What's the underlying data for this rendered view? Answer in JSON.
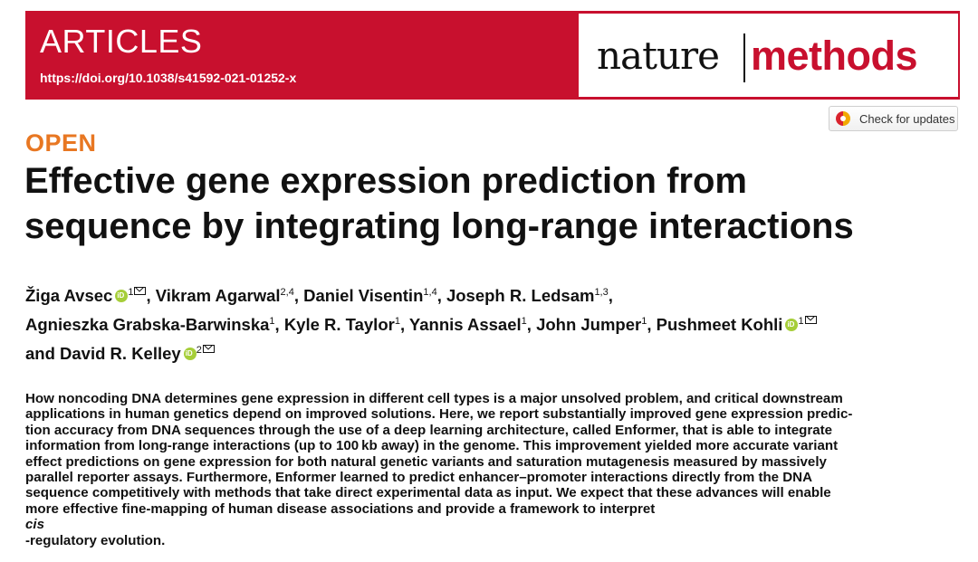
{
  "header": {
    "section": "ARTICLES",
    "doi": "https://doi.org/10.1038/s41592-021-01252-x"
  },
  "logo": {
    "part1": "nature",
    "part2": "methods",
    "colors": {
      "accent": "#c8102e",
      "dark": "#111111"
    }
  },
  "updates_button": {
    "label": "Check for updates",
    "icon": "check-updates-icon"
  },
  "access": {
    "label": "OPEN",
    "color": "#e87722"
  },
  "title": {
    "lines": [
      "Effective gene expression prediction from",
      "sequence by integrating long-range interactions"
    ]
  },
  "authors": [
    {
      "name": "Žiga Avsec",
      "aff": "1",
      "orcid": true,
      "email": true
    },
    {
      "name": "Vikram Agarwal",
      "aff": "2,4",
      "orcid": false,
      "email": false
    },
    {
      "name": "Daniel Visentin",
      "aff": "1,4",
      "orcid": false,
      "email": false
    },
    {
      "name": "Joseph R. Ledsam",
      "aff": "1,3",
      "orcid": false,
      "email": false
    },
    {
      "name": "Agnieszka Grabska-Barwinska",
      "aff": "1",
      "orcid": false,
      "email": false
    },
    {
      "name": "Kyle R. Taylor",
      "aff": "1",
      "orcid": false,
      "email": false
    },
    {
      "name": "Yannis Assael",
      "aff": "1",
      "orcid": false,
      "email": false
    },
    {
      "name": "John Jumper",
      "aff": "1",
      "orcid": false,
      "email": false
    },
    {
      "name": "Pushmeet Kohli",
      "aff": "1",
      "orcid": true,
      "email": true
    },
    {
      "name": "David R. Kelley",
      "aff": "2",
      "orcid": true,
      "email": true
    }
  ],
  "authors_conjunction": "and",
  "abstract": {
    "lines": [
      "How noncoding DNA determines gene expression in different cell types is a major unsolved problem, and critical downstream",
      "applications in human genetics depend on improved solutions. Here, we report substantially improved gene expression predic-",
      "tion accuracy from DNA sequences through the use of a deep learning architecture, called Enformer, that is able to integrate",
      "information from long-range interactions (up to 100 kb away) in the genome. This improvement yielded more accurate variant",
      "effect predictions on gene expression for both natural genetic variants and saturation mutagenesis measured by massively",
      "parallel reporter assays. Furthermore, Enformer learned to predict enhancer–promoter interactions directly from the DNA",
      "sequence competitively with methods that take direct experimental data as input. We expect that these advances will enable"
    ],
    "last_line_before": "more effective fine-mapping of human disease associations and provide a framework to interpret ",
    "last_line_italic": "cis",
    "last_line_after": "-regulatory evolution."
  }
}
